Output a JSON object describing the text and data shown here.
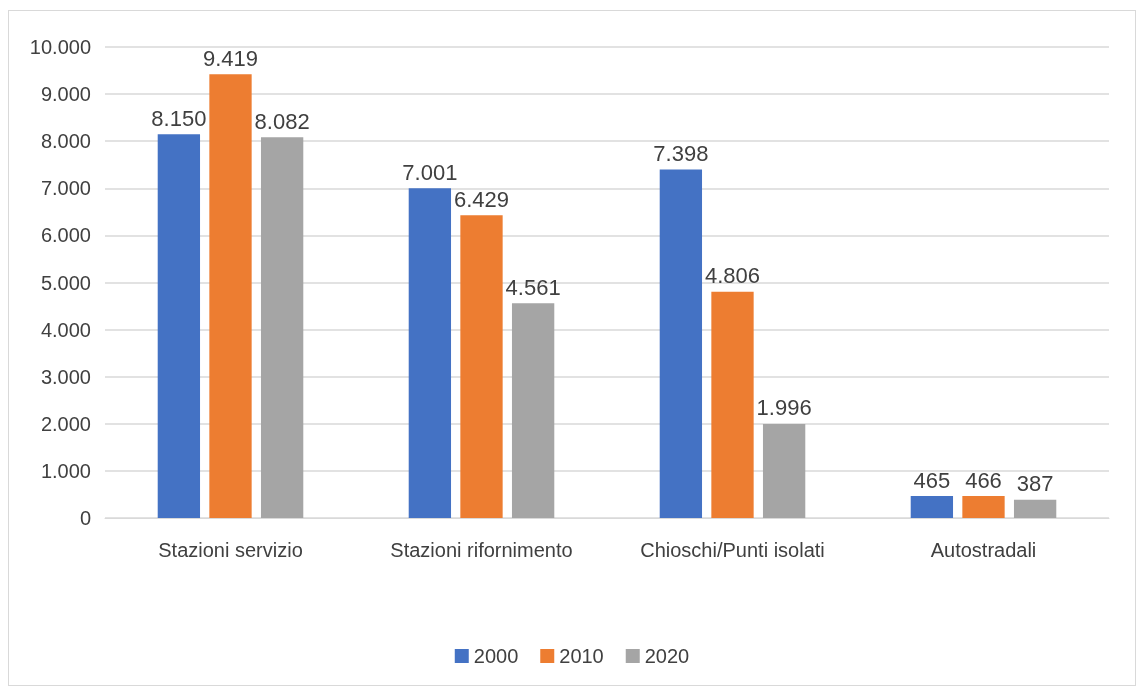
{
  "chart_data": {
    "type": "bar",
    "categories": [
      "Stazioni servizio",
      "Stazioni rifornimento",
      "Chioschi/Punti isolati",
      "Autostradali"
    ],
    "series": [
      {
        "name": "2000",
        "color": "#4472c4",
        "values": [
          8150,
          7001,
          7398,
          465
        ],
        "value_labels": [
          "8.150",
          "7.001",
          "7.398",
          "465"
        ]
      },
      {
        "name": "2010",
        "color": "#ed7d31",
        "values": [
          9419,
          6429,
          4806,
          466
        ],
        "value_labels": [
          "9.419",
          "6.429",
          "4.806",
          "466"
        ]
      },
      {
        "name": "2020",
        "color": "#a5a5a5",
        "values": [
          8082,
          4561,
          1996,
          387
        ],
        "value_labels": [
          "8.082",
          "4.561",
          "1.996",
          "387"
        ]
      }
    ],
    "ylim": [
      0,
      10000
    ],
    "yticks": [
      0,
      {
        "value": 1000,
        "label": "1.000"
      },
      {
        "value": 2000,
        "label": "2.000"
      },
      {
        "value": 3000,
        "label": "3.000"
      },
      {
        "value": 4000,
        "label": "4.000"
      },
      {
        "value": 5000,
        "label": "5.000"
      },
      {
        "value": 6000,
        "label": "6.000"
      },
      {
        "value": 7000,
        "label": "7.000"
      },
      {
        "value": 8000,
        "label": "8.000"
      },
      {
        "value": 9000,
        "label": "9.000"
      },
      {
        "value": 10000,
        "label": "10.000"
      }
    ],
    "grid": "y",
    "legend": "bottom"
  }
}
